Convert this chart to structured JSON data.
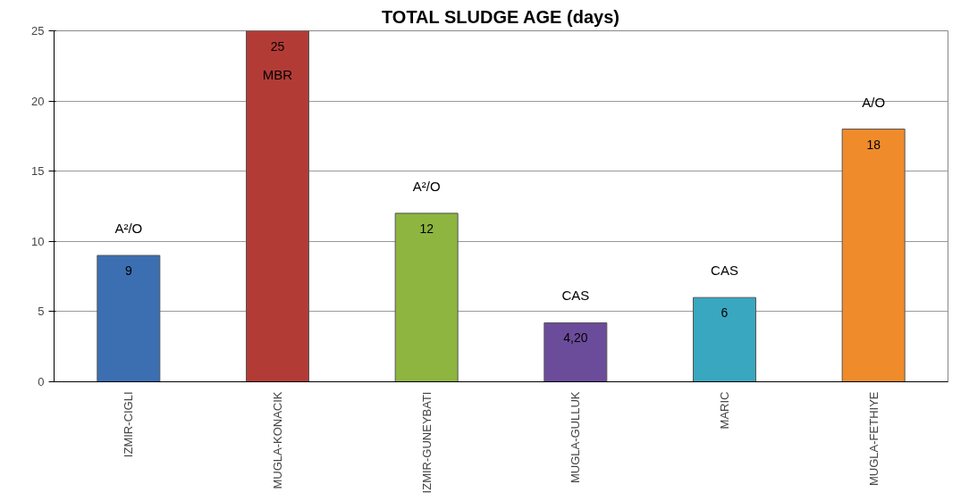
{
  "chart_data": {
    "type": "bar",
    "title": "TOTAL SLUDGE AGE (days)",
    "categories": [
      "IZMIR-CIGLI",
      "MUGLA-KONACIK",
      "IZMIR-GUNEYBATI",
      "MUGLA-GULLUK",
      "MARIC",
      "MUGLA-FETHIYE"
    ],
    "values": [
      9,
      25,
      12,
      4.2,
      6,
      18
    ],
    "colors": [
      "#3b6fb2",
      "#b33b36",
      "#8db53f",
      "#6b4c9b",
      "#38a7bf",
      "#f08b2b"
    ],
    "value_labels": [
      "9",
      "25",
      "12",
      "4,20",
      "6",
      "18"
    ],
    "ylim": [
      0,
      25
    ],
    "yticks": [
      0,
      5,
      10,
      15,
      20,
      25
    ],
    "grid": "y",
    "annotations": [
      "A²/O",
      "MBR",
      "A²/O",
      "CAS",
      "CAS",
      "A/O"
    ]
  }
}
